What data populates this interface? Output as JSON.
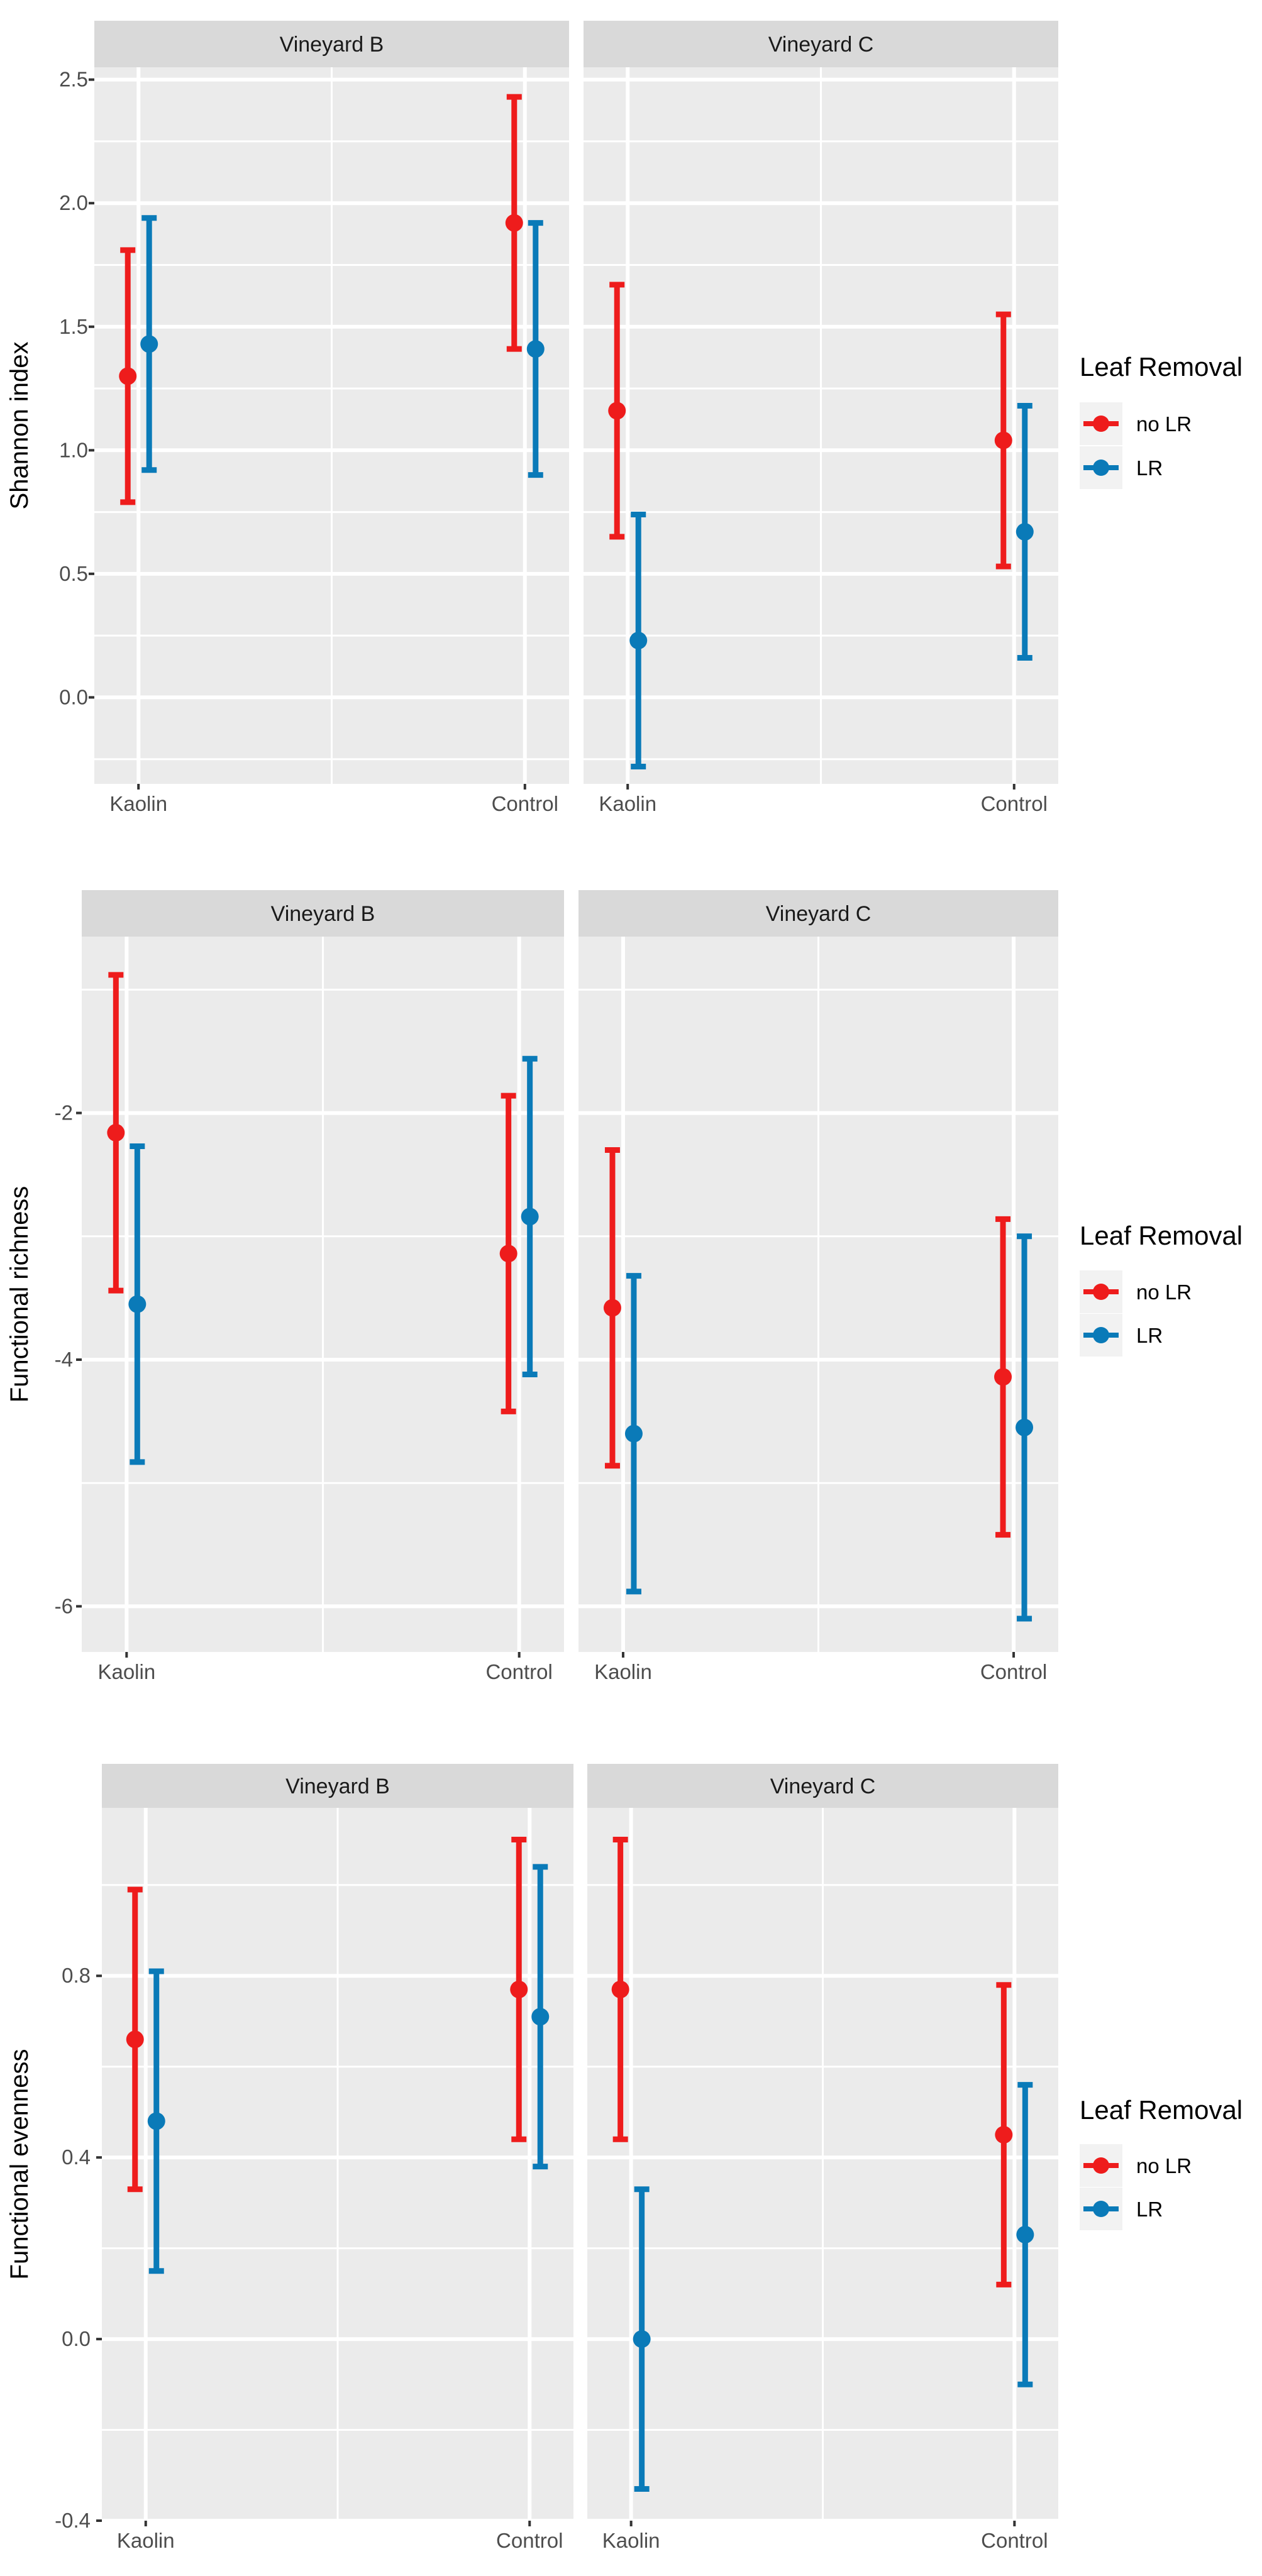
{
  "chart_data": [
    {
      "type": "errorbar",
      "ylabel": "Shannon index",
      "ylim": [
        -0.35,
        2.55
      ],
      "y_ticks": [
        0.0,
        0.5,
        1.0,
        1.5,
        2.0,
        2.5
      ],
      "y_tick_labels": [
        "0.0",
        "0.5",
        "1.0",
        "1.5",
        "2.0",
        "2.5"
      ],
      "categories": [
        "Kaolin",
        "Control"
      ],
      "legend": {
        "title": "Leaf Removal",
        "entries": [
          "no LR",
          "LR"
        ],
        "position": "right"
      },
      "panels": [
        {
          "title": "Vineyard B",
          "series": [
            {
              "name": "no LR",
              "mean": [
                1.3,
                1.92
              ],
              "lower": [
                0.79,
                1.41
              ],
              "upper": [
                1.81,
                2.43
              ]
            },
            {
              "name": "LR",
              "mean": [
                1.43,
                1.41
              ],
              "lower": [
                0.92,
                0.9
              ],
              "upper": [
                1.94,
                1.92
              ]
            }
          ]
        },
        {
          "title": "Vineyard C",
          "series": [
            {
              "name": "no LR",
              "mean": [
                1.16,
                1.04
              ],
              "lower": [
                0.65,
                0.53
              ],
              "upper": [
                1.67,
                1.55
              ]
            },
            {
              "name": "LR",
              "mean": [
                0.23,
                0.67
              ],
              "lower": [
                -0.28,
                0.16
              ],
              "upper": [
                0.74,
                1.18
              ]
            }
          ]
        }
      ]
    },
    {
      "type": "errorbar",
      "ylabel": "Functional richness",
      "ylim": [
        -6.37,
        -0.57
      ],
      "y_ticks": [
        -6,
        -4,
        -2
      ],
      "y_tick_labels": [
        "-6",
        "-4",
        "-2"
      ],
      "categories": [
        "Kaolin",
        "Control"
      ],
      "legend": {
        "title": "Leaf Removal",
        "entries": [
          "no LR",
          "LR"
        ],
        "position": "right"
      },
      "panels": [
        {
          "title": "Vineyard B",
          "series": [
            {
              "name": "no LR",
              "mean": [
                -2.16,
                -3.14
              ],
              "lower": [
                -3.44,
                -4.42
              ],
              "upper": [
                -0.88,
                -1.86
              ]
            },
            {
              "name": "LR",
              "mean": [
                -3.55,
                -2.84
              ],
              "lower": [
                -4.83,
                -4.12
              ],
              "upper": [
                -2.27,
                -1.56
              ]
            }
          ]
        },
        {
          "title": "Vineyard C",
          "series": [
            {
              "name": "no LR",
              "mean": [
                -3.58,
                -4.14
              ],
              "lower": [
                -4.86,
                -5.42
              ],
              "upper": [
                -2.3,
                -2.86
              ]
            },
            {
              "name": "LR",
              "mean": [
                -4.6,
                -4.55
              ],
              "lower": [
                -5.88,
                -6.1
              ],
              "upper": [
                -3.32,
                -3.0
              ]
            }
          ]
        }
      ]
    },
    {
      "type": "errorbar",
      "ylabel": "Functional evenness",
      "ylim": [
        -0.4,
        1.17
      ],
      "y_ticks": [
        -0.4,
        0.0,
        0.4,
        0.8
      ],
      "y_tick_labels": [
        "-0.4",
        "0.0",
        "0.4",
        "0.8"
      ],
      "categories": [
        "Kaolin",
        "Control"
      ],
      "legend": {
        "title": "Leaf Removal",
        "entries": [
          "no LR",
          "LR"
        ],
        "position": "right"
      },
      "panels": [
        {
          "title": "Vineyard B",
          "series": [
            {
              "name": "no LR",
              "mean": [
                0.66,
                0.77
              ],
              "lower": [
                0.33,
                0.44
              ],
              "upper": [
                0.99,
                1.1
              ]
            },
            {
              "name": "LR",
              "mean": [
                0.48,
                0.71
              ],
              "lower": [
                0.15,
                0.38
              ],
              "upper": [
                0.81,
                1.04
              ]
            }
          ]
        },
        {
          "title": "Vineyard C",
          "series": [
            {
              "name": "no LR",
              "mean": [
                0.77,
                0.45
              ],
              "lower": [
                0.44,
                0.12
              ],
              "upper": [
                1.1,
                0.78
              ]
            },
            {
              "name": "LR",
              "mean": [
                0.0,
                0.23
              ],
              "lower": [
                -0.33,
                -0.1
              ],
              "upper": [
                0.33,
                0.56
              ]
            }
          ]
        }
      ]
    }
  ],
  "colors": {
    "no LR": "#ee1c1c",
    "LR": "#0a7ab8",
    "panel_bg": "#ebebeb",
    "strip_bg": "#d9d9d9",
    "grid": "#ffffff"
  }
}
